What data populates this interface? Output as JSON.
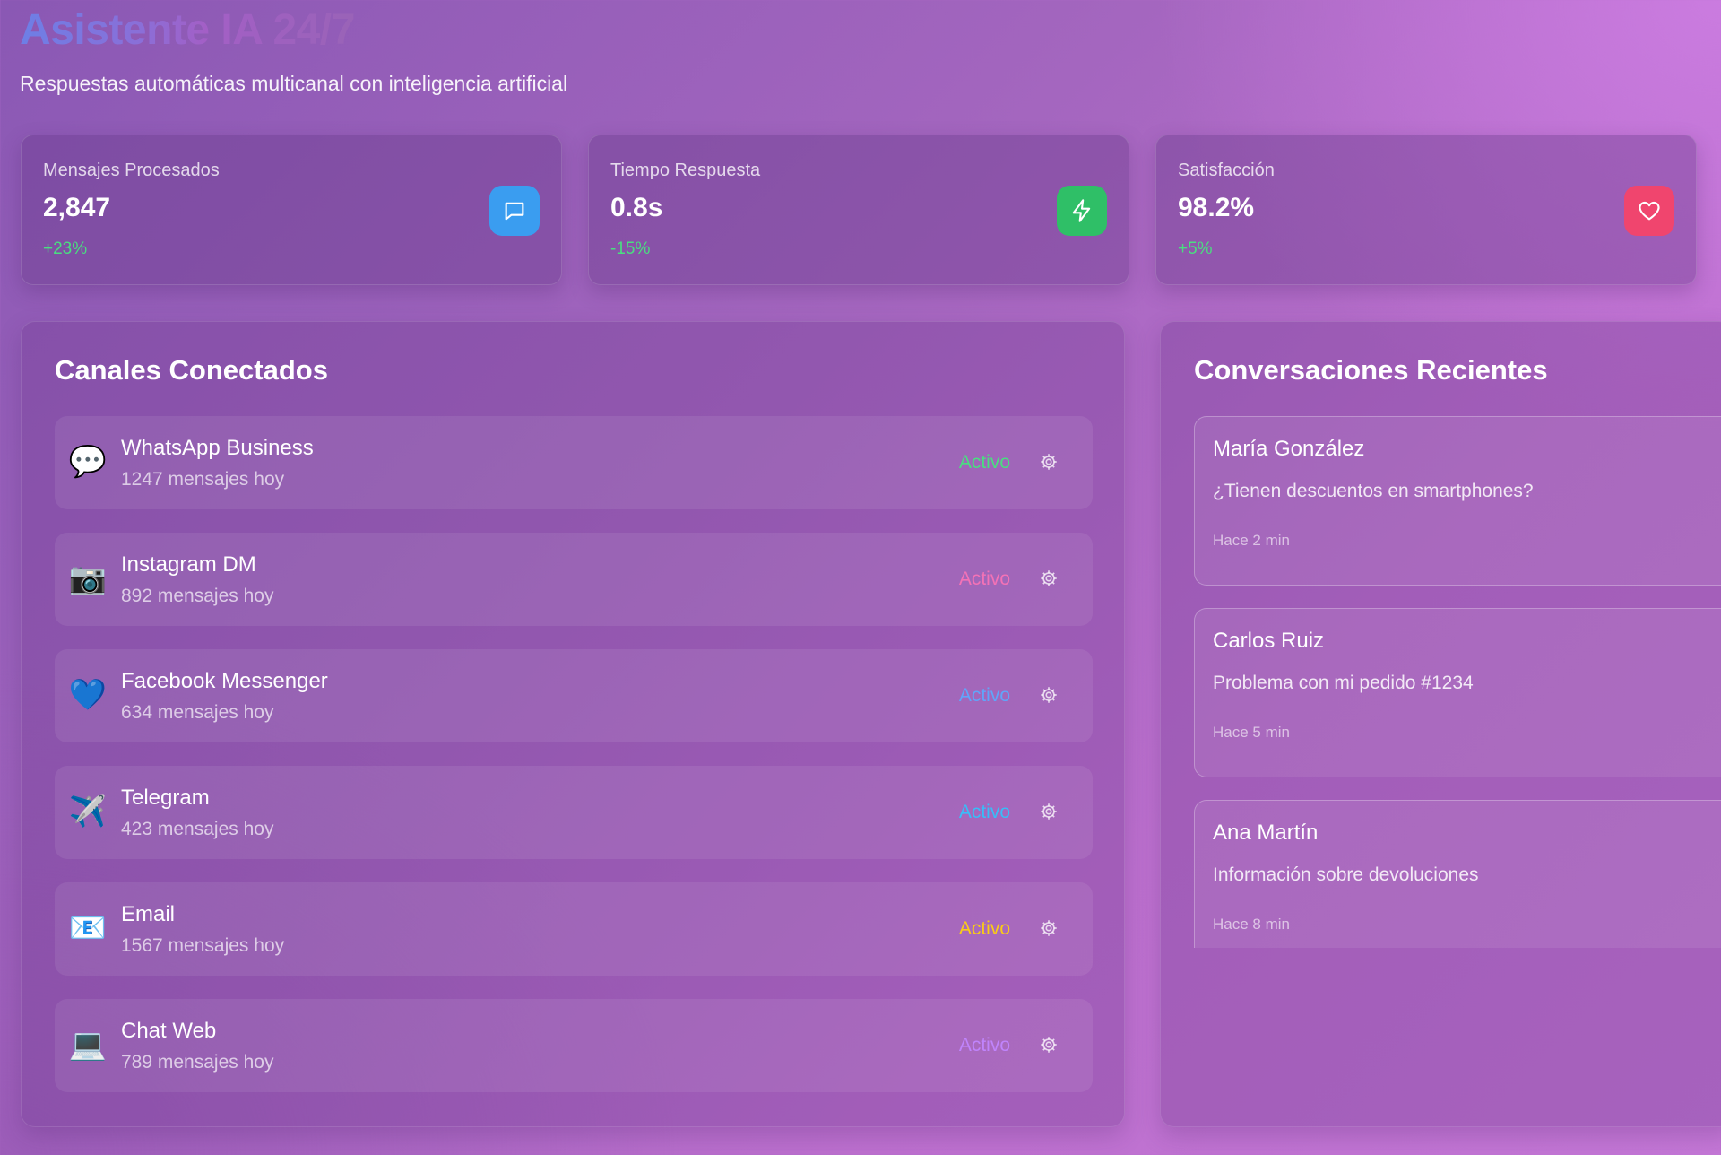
{
  "header": {
    "title": "Asistente IA 24/7",
    "subtitle": "Respuestas automáticas multicanal con inteligencia artificial"
  },
  "stats": [
    {
      "label": "Mensajes Procesados",
      "value": "2,847",
      "change": "+23%",
      "icon": "chat-bubble-icon",
      "color": "#3a9df0"
    },
    {
      "label": "Tiempo Respuesta",
      "value": "0.8s",
      "change": "-15%",
      "icon": "lightning-bolt-icon",
      "color": "#2fbf67"
    },
    {
      "label": "Satisfacción",
      "value": "98.2%",
      "change": "+5%",
      "icon": "heart-icon",
      "color": "#f0456e"
    }
  ],
  "channels": {
    "title": "Canales Conectados",
    "items": [
      {
        "emoji": "💬",
        "name": "WhatsApp Business",
        "count": "1247 mensajes hoy",
        "status": "Activo",
        "status_color": "#4ade80"
      },
      {
        "emoji": "📷",
        "name": "Instagram DM",
        "count": "892 mensajes hoy",
        "status": "Activo",
        "status_color": "#f472b6"
      },
      {
        "emoji": "💙",
        "name": "Facebook Messenger",
        "count": "634 mensajes hoy",
        "status": "Activo",
        "status_color": "#60a5fa"
      },
      {
        "emoji": "✈️",
        "name": "Telegram",
        "count": "423 mensajes hoy",
        "status": "Activo",
        "status_color": "#38bdf8"
      },
      {
        "emoji": "📧",
        "name": "Email",
        "count": "1567 mensajes hoy",
        "status": "Activo",
        "status_color": "#facc15"
      },
      {
        "emoji": "💻",
        "name": "Chat Web",
        "count": "789 mensajes hoy",
        "status": "Activo",
        "status_color": "#c084fc"
      }
    ]
  },
  "conversations": {
    "title": "Conversaciones Recientes",
    "items": [
      {
        "name": "María González",
        "message": "¿Tienen descuentos en smartphones?",
        "time": "Hace 2 min"
      },
      {
        "name": "Carlos Ruiz",
        "message": "Problema con mi pedido #1234",
        "time": "Hace 5 min"
      },
      {
        "name": "Ana Martín",
        "message": "Información sobre devoluciones",
        "time": "Hace 8 min"
      }
    ]
  }
}
